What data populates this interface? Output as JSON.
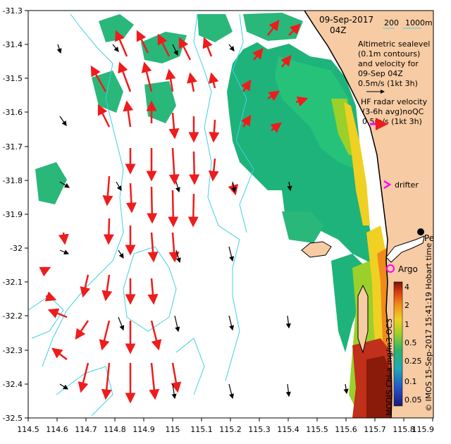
{
  "map": {
    "date": "09-Sep-2017",
    "time": "04Z",
    "depth_legend": {
      "label_left": "200",
      "label_right": "1000m"
    },
    "altimetry_note": [
      "Altimetric sealevel",
      "(0.1m contours)",
      "and velocity for",
      "09-Sep 04Z",
      "0.5m/s (1kt 3h)"
    ],
    "hf_note": [
      "HF radar velocity",
      "(3-6h avg)noQC",
      "0.5m/s (1kt 3h)"
    ],
    "labels": {
      "drifter": "drifter",
      "argo": "Argo",
      "perth": "Perth"
    },
    "credit": "© IMOS 15-Sep-2017 15:41:19 Hobart time",
    "colorbar_title": "MODIS Chl-a mg/m3 OC3",
    "colorbar_ticks": [
      "4",
      "2",
      "1",
      "0.5",
      "0.25",
      "0.1",
      "0.05"
    ],
    "x_ticks": [
      "114.5",
      "114.6",
      "114.7",
      "114.8",
      "114.9",
      "115",
      "115.1",
      "115.2",
      "115.3",
      "115.4",
      "115.5",
      "115.6",
      "115.7",
      "115.8",
      "115.9"
    ],
    "y_ticks": [
      "-31.3",
      "-31.4",
      "-31.5",
      "-31.6",
      "-31.7",
      "-31.8",
      "-31.9",
      "-32",
      "-32.1",
      "-32.2",
      "-32.3",
      "-32.4",
      "-32.5"
    ],
    "colors": {
      "land": "#f7cba3",
      "hf_arrow": "#ee1c1c",
      "alt_arrow": "#000000",
      "bathy": "#3fd0e6",
      "drifter": "#ff00ff",
      "chl_low": "#1eb37a",
      "chl_high": "#8a1a0a"
    },
    "icons": [
      "drifter-marker-icon",
      "argo-float-icon",
      "perth-city-icon"
    ]
  }
}
